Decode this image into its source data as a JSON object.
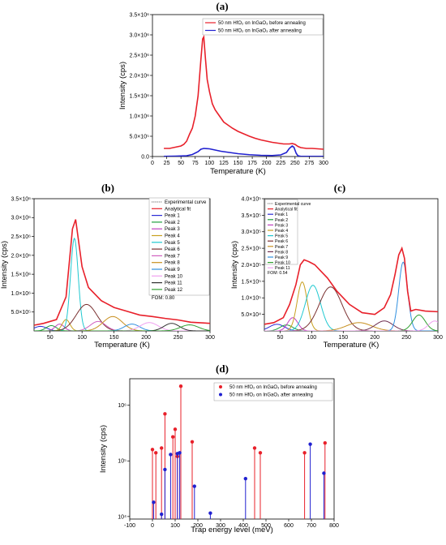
{
  "chart_data": [
    {
      "panel": "(a)",
      "type": "line",
      "xlabel": "Temperature (K)",
      "ylabel": "Intensity (cps)",
      "xlim": [
        0,
        300
      ],
      "ylim": [
        0,
        3500000
      ],
      "x_ticks": [
        "0",
        "25",
        "50",
        "75",
        "100",
        "125",
        "150",
        "175",
        "200",
        "225",
        "250",
        "275",
        "300"
      ],
      "y_ticks": [
        "0.0",
        "5.0×10⁵",
        "1.0×10⁶",
        "1.5×10⁶",
        "2.0×10⁶",
        "2.5×10⁶",
        "3.0×10⁶",
        "3.5×10⁶"
      ],
      "legend": "top-right",
      "series": [
        {
          "name": "50 nm HfO₂ on InGaO₃ before annealing",
          "color": "#e8202a",
          "x": [
            20,
            30,
            40,
            50,
            55,
            60,
            65,
            70,
            75,
            80,
            85,
            88,
            90,
            93,
            96,
            100,
            105,
            110,
            115,
            120,
            125,
            130,
            140,
            150,
            160,
            170,
            180,
            190,
            200,
            210,
            220,
            230,
            240,
            245,
            250,
            255,
            260,
            270,
            280,
            290,
            300
          ],
          "y": [
            200000,
            200000,
            230000,
            260000,
            300000,
            380000,
            550000,
            700000,
            1000000,
            1500000,
            2400000,
            2900000,
            2950000,
            2400000,
            1900000,
            1600000,
            1300000,
            1150000,
            1050000,
            950000,
            850000,
            800000,
            700000,
            620000,
            560000,
            500000,
            450000,
            410000,
            380000,
            350000,
            330000,
            310000,
            310000,
            320000,
            300000,
            250000,
            220000,
            200000,
            200000,
            190000,
            180000
          ]
        },
        {
          "name": "50 nm HfO₂ on InGaO₃ after annealing",
          "color": "#2020d0",
          "x": [
            20,
            40,
            60,
            70,
            80,
            85,
            90,
            100,
            110,
            120,
            130,
            150,
            170,
            190,
            210,
            225,
            235,
            240,
            245,
            248,
            252,
            255,
            260,
            280,
            300
          ],
          "y": [
            5000,
            10000,
            20000,
            50000,
            120000,
            180000,
            200000,
            190000,
            160000,
            130000,
            110000,
            70000,
            45000,
            30000,
            25000,
            40000,
            100000,
            200000,
            260000,
            230000,
            80000,
            20000,
            5000,
            3000,
            3000
          ]
        }
      ]
    },
    {
      "panel": "(b)",
      "type": "line",
      "xlabel": "Temperature (K)",
      "ylabel": "Intensity (cps)",
      "xlim": [
        25,
        300
      ],
      "ylim": [
        0,
        3500000
      ],
      "x_ticks": [
        "50",
        "100",
        "150",
        "200",
        "250",
        "300"
      ],
      "y_ticks": [
        "5.0×10⁵",
        "1.0×10⁶",
        "1.5×10⁶",
        "2.0×10⁶",
        "2.5×10⁶",
        "3.0×10⁶",
        "3.5×10⁶"
      ],
      "legend": "top-right",
      "fom": "FOM: 0.80",
      "series": [
        {
          "name": "Experimental curve",
          "color": "#333333",
          "dash": true,
          "x": [
            25,
            40,
            60,
            75,
            85,
            90,
            100,
            110,
            130,
            150,
            170,
            190,
            210,
            230,
            250,
            270,
            300
          ],
          "y": [
            150000,
            200000,
            300000,
            900000,
            2700000,
            2950000,
            1700000,
            1150000,
            800000,
            620000,
            520000,
            420000,
            380000,
            330000,
            290000,
            230000,
            200000
          ]
        },
        {
          "name": "Analytical fit",
          "color": "#e8202a",
          "x": [
            25,
            40,
            60,
            75,
            85,
            90,
            100,
            110,
            130,
            150,
            170,
            190,
            210,
            230,
            250,
            270,
            300
          ],
          "y": [
            150000,
            200000,
            300000,
            900000,
            2700000,
            2950000,
            1700000,
            1150000,
            800000,
            620000,
            520000,
            420000,
            380000,
            330000,
            290000,
            230000,
            200000
          ]
        }
      ],
      "peaks": [
        {
          "name": "Peak 1",
          "color": "#2c2cd6",
          "center": 35,
          "height": 120000,
          "width": 10
        },
        {
          "name": "Peak 2",
          "color": "#1f9f3f",
          "center": 52,
          "height": 140000,
          "width": 8
        },
        {
          "name": "Peak 3",
          "color": "#c040c0",
          "center": 65,
          "height": 180000,
          "width": 7
        },
        {
          "name": "Peak 4",
          "color": "#c8a020",
          "center": 75,
          "height": 300000,
          "width": 6
        },
        {
          "name": "Peak 5",
          "color": "#20c8d0",
          "center": 88,
          "height": 2450000,
          "width": 6
        },
        {
          "name": "Peak 6",
          "color": "#7a3030",
          "center": 107,
          "height": 700000,
          "width": 16
        },
        {
          "name": "Peak 7",
          "color": "#d060c0",
          "center": 125,
          "height": 250000,
          "width": 12
        },
        {
          "name": "Peak 8",
          "color": "#c89020",
          "center": 148,
          "height": 380000,
          "width": 15
        },
        {
          "name": "Peak 9",
          "color": "#3090e0",
          "center": 178,
          "height": 180000,
          "width": 12
        },
        {
          "name": "Peak 10",
          "color": "#f0a0f0",
          "center": 205,
          "height": 220000,
          "width": 14
        },
        {
          "name": "Peak 11",
          "color": "#303030",
          "center": 240,
          "height": 200000,
          "width": 12
        },
        {
          "name": "Peak 12",
          "color": "#30a030",
          "center": 268,
          "height": 160000,
          "width": 14
        }
      ]
    },
    {
      "panel": "(c)",
      "type": "line",
      "xlabel": "Temperature (K)",
      "ylabel": "Intensity (cps)",
      "xlim": [
        25,
        300
      ],
      "ylim": [
        0,
        400000
      ],
      "x_ticks": [
        "50",
        "100",
        "150",
        "200",
        "250",
        "300"
      ],
      "y_ticks": [
        "5.0×10⁴",
        "1.0×10⁵",
        "1.5×10⁵",
        "2.0×10⁵",
        "2.5×10⁵",
        "3.0×10⁵",
        "3.5×10⁵",
        "4.0×10⁵"
      ],
      "legend": "top-left",
      "fom": "FOM: 0.54",
      "series": [
        {
          "name": "Experimental curve",
          "color": "#333333",
          "dash": true,
          "x": [
            25,
            40,
            55,
            65,
            75,
            82,
            88,
            95,
            105,
            115,
            125,
            140,
            160,
            180,
            200,
            215,
            225,
            232,
            238,
            243,
            247,
            252,
            257,
            265,
            280,
            300
          ],
          "y": [
            20000,
            25000,
            40000,
            80000,
            140000,
            200000,
            215000,
            210000,
            200000,
            180000,
            160000,
            120000,
            80000,
            55000,
            50000,
            70000,
            110000,
            170000,
            230000,
            250000,
            220000,
            120000,
            60000,
            65000,
            60000,
            58000
          ]
        },
        {
          "name": "Analytical fit",
          "color": "#e8202a",
          "x": [
            25,
            40,
            55,
            65,
            75,
            82,
            88,
            95,
            105,
            115,
            125,
            140,
            160,
            180,
            200,
            215,
            225,
            232,
            238,
            243,
            247,
            252,
            257,
            265,
            280,
            300
          ],
          "y": [
            20000,
            25000,
            40000,
            80000,
            140000,
            200000,
            215000,
            210000,
            200000,
            180000,
            160000,
            120000,
            80000,
            55000,
            50000,
            70000,
            110000,
            170000,
            230000,
            250000,
            220000,
            120000,
            60000,
            65000,
            60000,
            58000
          ]
        }
      ],
      "peaks": [
        {
          "name": "Peak 1",
          "color": "#2c2cd6",
          "center": 45,
          "height": 20000,
          "width": 12
        },
        {
          "name": "Peak 2",
          "color": "#1f9f3f",
          "center": 60,
          "height": 18000,
          "width": 10
        },
        {
          "name": "Peak 3",
          "color": "#c040c0",
          "center": 70,
          "height": 40000,
          "width": 8
        },
        {
          "name": "Peak 4",
          "color": "#c8a020",
          "center": 85,
          "height": 148000,
          "width": 8
        },
        {
          "name": "Peak 5",
          "color": "#20c8d0",
          "center": 102,
          "height": 138000,
          "width": 12
        },
        {
          "name": "Peak 6",
          "color": "#7a3030",
          "center": 130,
          "height": 133000,
          "width": 18
        },
        {
          "name": "Peak 7",
          "color": "#c89020",
          "center": 175,
          "height": 25000,
          "width": 20
        },
        {
          "name": "Peak 8",
          "color": "#703050",
          "center": 215,
          "height": 30000,
          "width": 14
        },
        {
          "name": "Peak 9",
          "color": "#3090e0",
          "center": 245,
          "height": 208000,
          "width": 7
        },
        {
          "name": "Peak 10",
          "color": "#30a030",
          "center": 270,
          "height": 48000,
          "width": 10
        },
        {
          "name": "Peak 11",
          "color": "#f0a0f0",
          "center": 295,
          "height": 30000,
          "width": 10
        }
      ]
    },
    {
      "panel": "(d)",
      "type": "scatter",
      "xlabel": "Trap energy level (meV)",
      "ylabel": "Intensity (cps)",
      "xlim": [
        -100,
        800
      ],
      "ylim_log": [
        9000,
        3000000
      ],
      "log_y": true,
      "x_ticks": [
        "-100",
        "0",
        "100",
        "200",
        "300",
        "400",
        "500",
        "600",
        "700",
        "800"
      ],
      "y_ticks": [
        "10⁴",
        "10⁵",
        "10⁶"
      ],
      "legend": "top-right",
      "series": [
        {
          "name": "50 nm HfO₂ on InGaO₃ before annealing",
          "color": "#e8202a",
          "x": [
            0,
            15,
            40,
            55,
            90,
            100,
            110,
            125,
            175,
            450,
            475,
            670,
            760
          ],
          "y": [
            160000,
            140000,
            170000,
            700000,
            270000,
            370000,
            120000,
            2200000,
            220000,
            170000,
            140000,
            140000,
            210000
          ]
        },
        {
          "name": "50 nm HfO₂ on InGaO₃ after annealing",
          "color": "#2020d0",
          "x": [
            5,
            40,
            55,
            80,
            110,
            120,
            185,
            255,
            410,
            695,
            755
          ],
          "y": [
            18000,
            11000,
            70000,
            130000,
            135000,
            140000,
            35000,
            11500,
            48000,
            200000,
            60000
          ]
        }
      ]
    }
  ]
}
